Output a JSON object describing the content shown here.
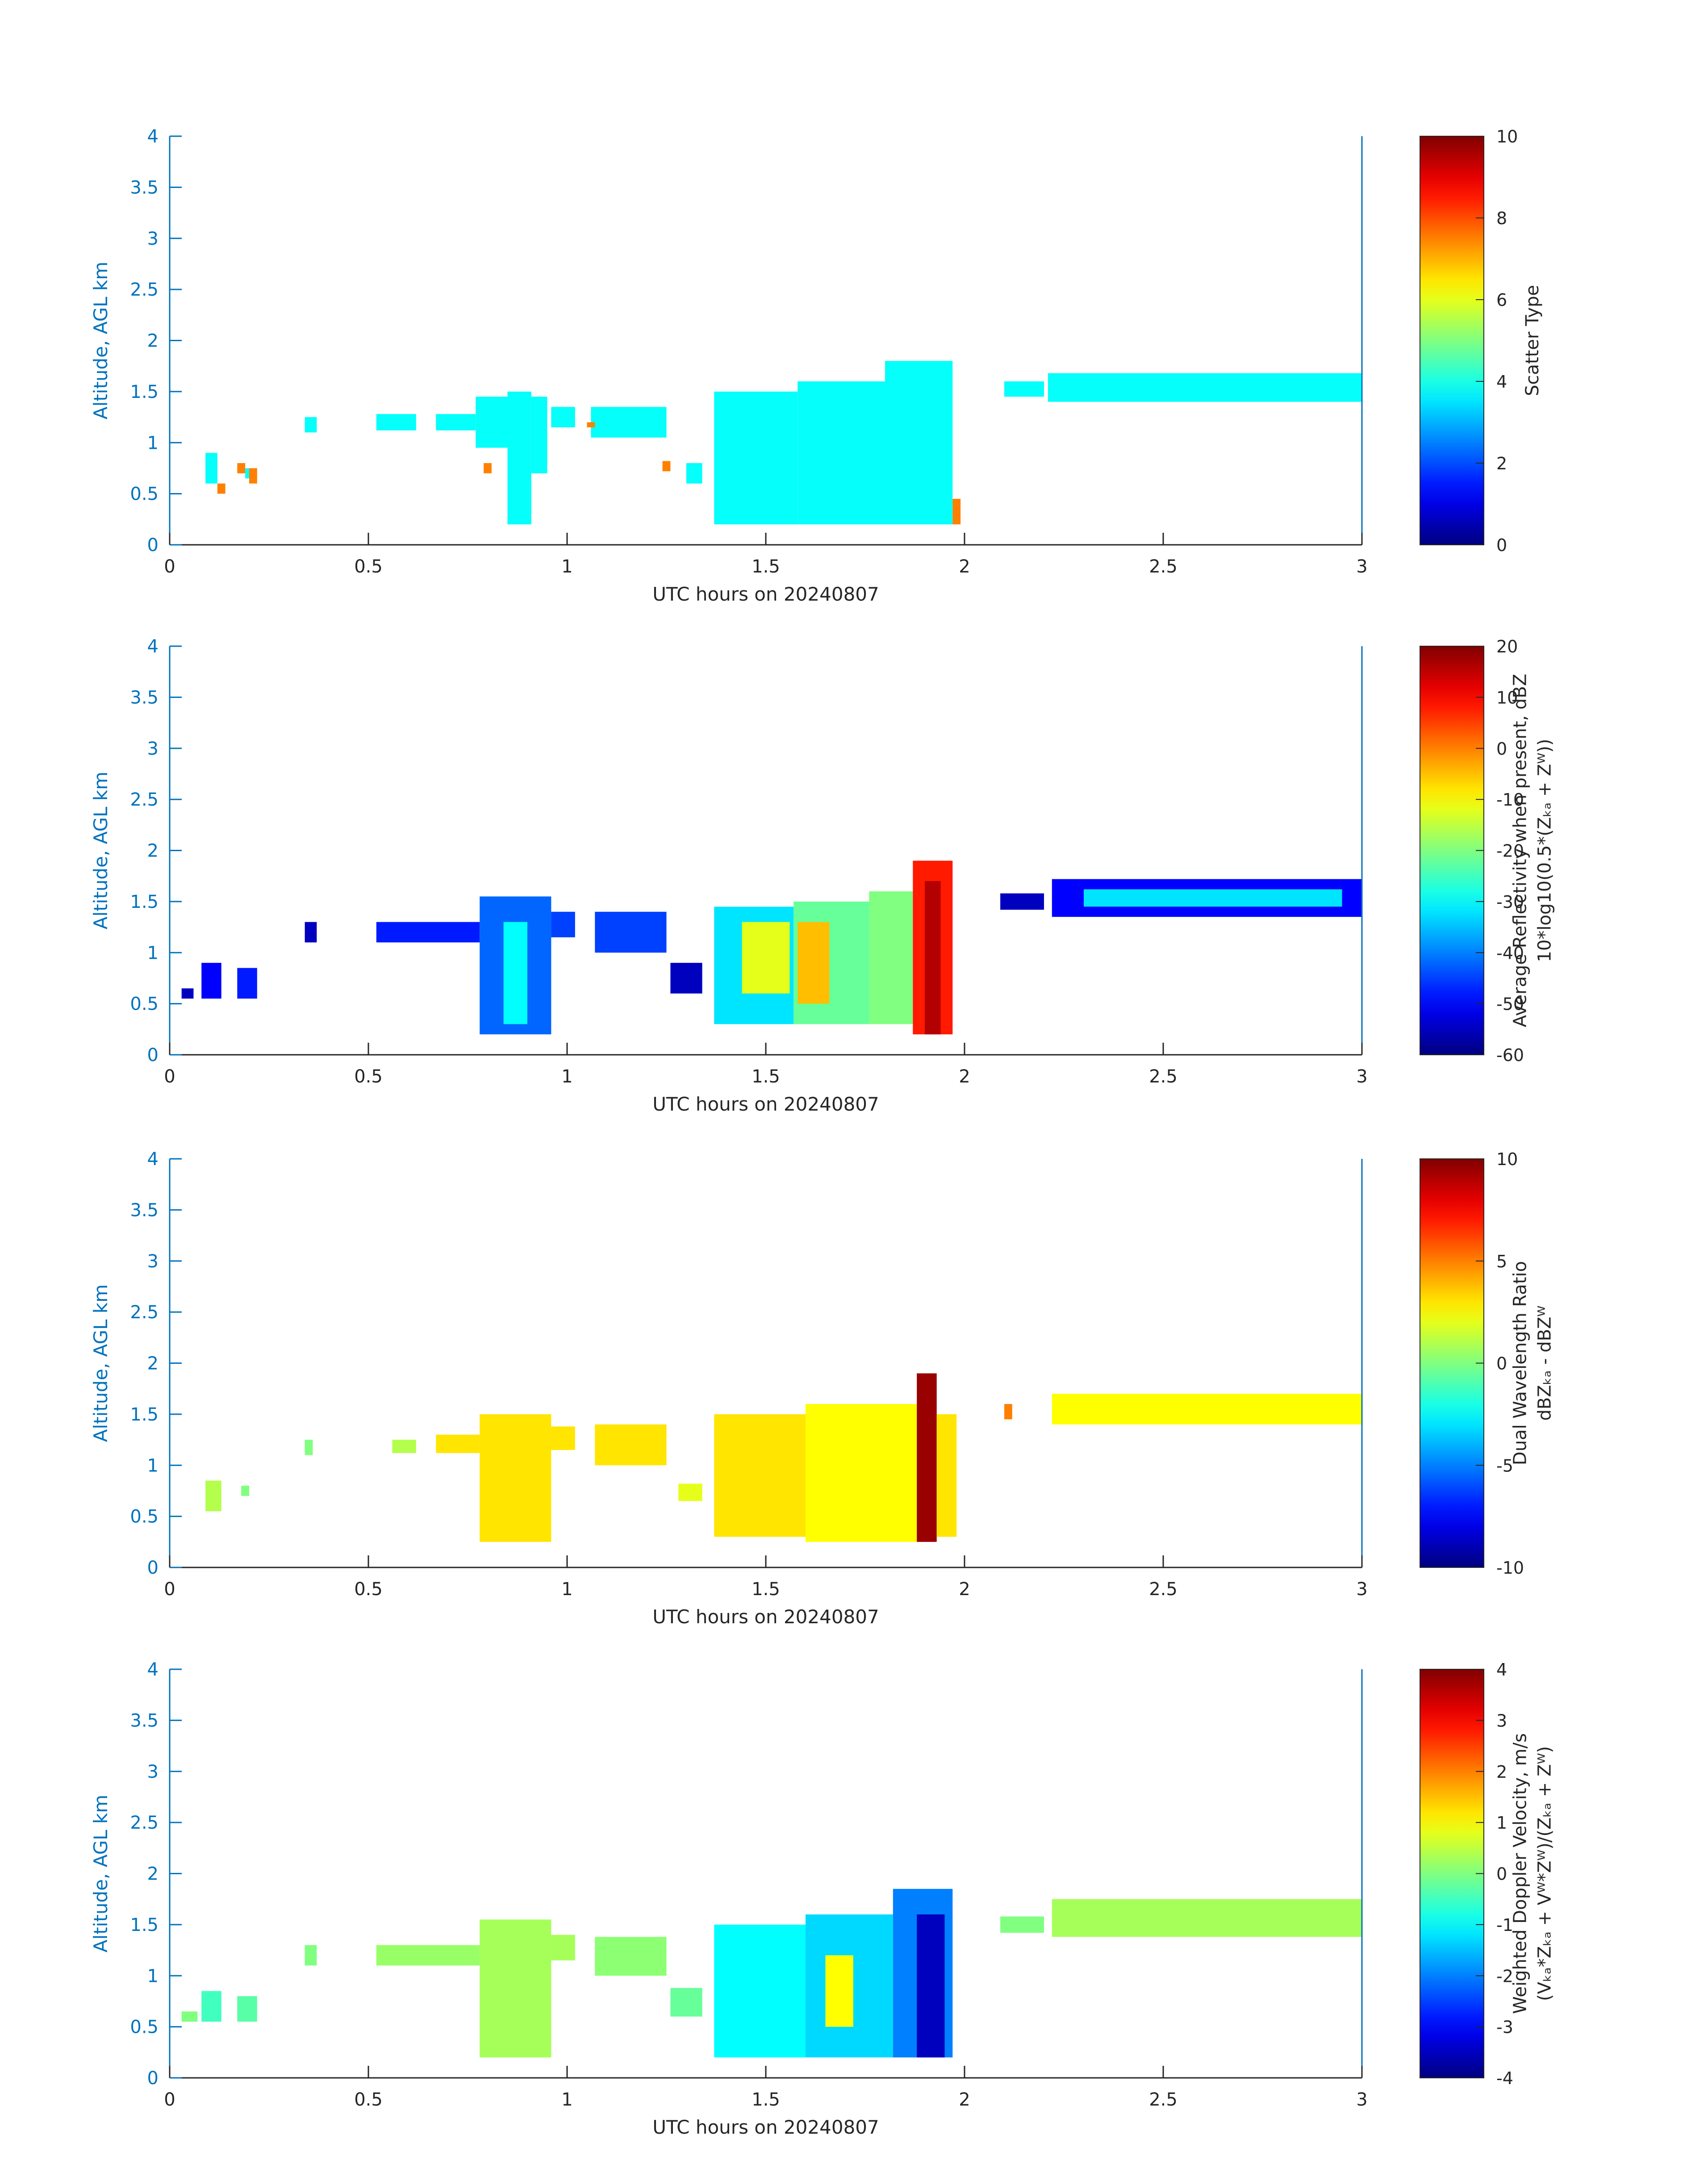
{
  "chart_data": [
    {
      "type": "heatmap",
      "xlabel": "UTC hours on 20240807",
      "ylabel": "Altitude, AGL km",
      "xlim": [
        0,
        3
      ],
      "ylim": [
        0,
        4
      ],
      "xticks": [
        "0",
        "0.5",
        "1",
        "1.5",
        "2",
        "2.5",
        "3"
      ],
      "yticks": [
        "0",
        "0.5",
        "1",
        "1.5",
        "2",
        "2.5",
        "3",
        "3.5",
        "4"
      ],
      "colorbar": {
        "label_lines": [
          "Scatter Type"
        ],
        "range": [
          0,
          10
        ],
        "ticks": [
          "0",
          "2",
          "4",
          "6",
          "8",
          "10"
        ]
      },
      "regions": [
        {
          "x0": 0.09,
          "x1": 0.12,
          "y0": 0.6,
          "y1": 0.9,
          "value": 3.8
        },
        {
          "x0": 0.12,
          "x1": 0.14,
          "y0": 0.5,
          "y1": 0.6,
          "value": 7.5
        },
        {
          "x0": 0.17,
          "x1": 0.19,
          "y0": 0.7,
          "y1": 0.8,
          "value": 7.5
        },
        {
          "x0": 0.19,
          "x1": 0.21,
          "y0": 0.65,
          "y1": 0.75,
          "value": 3.8
        },
        {
          "x0": 0.2,
          "x1": 0.22,
          "y0": 0.6,
          "y1": 0.75,
          "value": 7.5
        },
        {
          "x0": 0.34,
          "x1": 0.37,
          "y0": 1.1,
          "y1": 1.25,
          "value": 3.8
        },
        {
          "x0": 0.52,
          "x1": 0.62,
          "y0": 1.12,
          "y1": 1.28,
          "value": 3.8
        },
        {
          "x0": 0.67,
          "x1": 0.77,
          "y0": 1.12,
          "y1": 1.28,
          "value": 3.8
        },
        {
          "x0": 0.77,
          "x1": 0.85,
          "y0": 0.95,
          "y1": 1.45,
          "value": 3.8
        },
        {
          "x0": 0.85,
          "x1": 0.91,
          "y0": 0.2,
          "y1": 1.5,
          "value": 3.8
        },
        {
          "x0": 0.91,
          "x1": 0.95,
          "y0": 0.7,
          "y1": 1.45,
          "value": 3.8
        },
        {
          "x0": 0.79,
          "x1": 0.81,
          "y0": 0.7,
          "y1": 0.8,
          "value": 7.5
        },
        {
          "x0": 0.96,
          "x1": 1.02,
          "y0": 1.15,
          "y1": 1.35,
          "value": 3.8
        },
        {
          "x0": 1.06,
          "x1": 1.25,
          "y0": 1.05,
          "y1": 1.35,
          "value": 3.8
        },
        {
          "x0": 1.05,
          "x1": 1.07,
          "y0": 1.15,
          "y1": 1.2,
          "value": 7.5
        },
        {
          "x0": 1.24,
          "x1": 1.26,
          "y0": 0.72,
          "y1": 0.82,
          "value": 7.5
        },
        {
          "x0": 1.3,
          "x1": 1.34,
          "y0": 0.6,
          "y1": 0.8,
          "value": 3.8
        },
        {
          "x0": 1.37,
          "x1": 1.58,
          "y0": 0.2,
          "y1": 1.5,
          "value": 3.8
        },
        {
          "x0": 1.58,
          "x1": 1.8,
          "y0": 0.2,
          "y1": 1.6,
          "value": 3.8
        },
        {
          "x0": 1.8,
          "x1": 1.97,
          "y0": 0.2,
          "y1": 1.8,
          "value": 3.8
        },
        {
          "x0": 1.97,
          "x1": 1.99,
          "y0": 0.2,
          "y1": 0.45,
          "value": 7.5
        },
        {
          "x0": 2.1,
          "x1": 2.2,
          "y0": 1.45,
          "y1": 1.6,
          "value": 3.8
        },
        {
          "x0": 2.21,
          "x1": 3.0,
          "y0": 1.4,
          "y1": 1.68,
          "value": 3.8
        }
      ]
    },
    {
      "type": "heatmap",
      "xlabel": "UTC hours on 20240807",
      "ylabel": "Altitude, AGL km",
      "xlim": [
        0,
        3
      ],
      "ylim": [
        0,
        4
      ],
      "xticks": [
        "0",
        "0.5",
        "1",
        "1.5",
        "2",
        "2.5",
        "3"
      ],
      "yticks": [
        "0",
        "0.5",
        "1",
        "1.5",
        "2",
        "2.5",
        "3",
        "3.5",
        "4"
      ],
      "colorbar": {
        "label_lines": [
          "Average Reflectivity when present, dBZ",
          "10*log10(0.5*(Zₖₐ + Zᵂ))"
        ],
        "range": [
          -60,
          20
        ],
        "ticks": [
          "-60",
          "-50",
          "-40",
          "-30",
          "-20",
          "-10",
          "0",
          "10",
          "20"
        ]
      },
      "regions": [
        {
          "x0": 0.03,
          "x1": 0.06,
          "y0": 0.55,
          "y1": 0.65,
          "value": -55
        },
        {
          "x0": 0.08,
          "x1": 0.13,
          "y0": 0.55,
          "y1": 0.9,
          "value": -50
        },
        {
          "x0": 0.17,
          "x1": 0.22,
          "y0": 0.55,
          "y1": 0.85,
          "value": -48
        },
        {
          "x0": 0.34,
          "x1": 0.37,
          "y0": 1.1,
          "y1": 1.3,
          "value": -55
        },
        {
          "x0": 0.52,
          "x1": 0.78,
          "y0": 1.1,
          "y1": 1.3,
          "value": -48
        },
        {
          "x0": 0.78,
          "x1": 0.96,
          "y0": 0.2,
          "y1": 1.55,
          "value": -42
        },
        {
          "x0": 0.84,
          "x1": 0.9,
          "y0": 0.3,
          "y1": 1.3,
          "value": -30
        },
        {
          "x0": 0.96,
          "x1": 1.02,
          "y0": 1.15,
          "y1": 1.4,
          "value": -45
        },
        {
          "x0": 1.07,
          "x1": 1.25,
          "y0": 1.0,
          "y1": 1.4,
          "value": -45
        },
        {
          "x0": 1.26,
          "x1": 1.34,
          "y0": 0.6,
          "y1": 0.9,
          "value": -55
        },
        {
          "x0": 1.37,
          "x1": 1.57,
          "y0": 0.3,
          "y1": 1.45,
          "value": -32
        },
        {
          "x0": 1.44,
          "x1": 1.56,
          "y0": 0.6,
          "y1": 1.3,
          "value": -12
        },
        {
          "x0": 1.57,
          "x1": 1.76,
          "y0": 0.3,
          "y1": 1.5,
          "value": -22
        },
        {
          "x0": 1.58,
          "x1": 1.66,
          "y0": 0.5,
          "y1": 1.3,
          "value": -5
        },
        {
          "x0": 1.76,
          "x1": 1.87,
          "y0": 0.3,
          "y1": 1.6,
          "value": -20
        },
        {
          "x0": 1.87,
          "x1": 1.97,
          "y0": 0.2,
          "y1": 1.9,
          "value": 8
        },
        {
          "x0": 1.9,
          "x1": 1.94,
          "y0": 0.2,
          "y1": 1.7,
          "value": 16
        },
        {
          "x0": 2.09,
          "x1": 2.2,
          "y0": 1.42,
          "y1": 1.58,
          "value": -55
        },
        {
          "x0": 2.22,
          "x1": 3.0,
          "y0": 1.35,
          "y1": 1.72,
          "value": -50
        },
        {
          "x0": 2.3,
          "x1": 2.95,
          "y0": 1.45,
          "y1": 1.62,
          "value": -32
        }
      ]
    },
    {
      "type": "heatmap",
      "xlabel": "UTC hours on 20240807",
      "ylabel": "Altitude, AGL km",
      "xlim": [
        0,
        3
      ],
      "ylim": [
        0,
        4
      ],
      "xticks": [
        "0",
        "0.5",
        "1",
        "1.5",
        "2",
        "2.5",
        "3"
      ],
      "yticks": [
        "0",
        "0.5",
        "1",
        "1.5",
        "2",
        "2.5",
        "3",
        "3.5",
        "4"
      ],
      "colorbar": {
        "label_lines": [
          "Dual Wavelength Ratio",
          "dBZₖₐ - dBZᵂ"
        ],
        "range": [
          -10,
          10
        ],
        "ticks": [
          "-10",
          "-5",
          "0",
          "5",
          "10"
        ]
      },
      "regions": [
        {
          "x0": 0.09,
          "x1": 0.13,
          "y0": 0.55,
          "y1": 0.85,
          "value": 1
        },
        {
          "x0": 0.18,
          "x1": 0.2,
          "y0": 0.7,
          "y1": 0.8,
          "value": 0
        },
        {
          "x0": 0.34,
          "x1": 0.36,
          "y0": 1.1,
          "y1": 1.25,
          "value": 0
        },
        {
          "x0": 0.56,
          "x1": 0.62,
          "y0": 1.12,
          "y1": 1.25,
          "value": 1
        },
        {
          "x0": 0.67,
          "x1": 0.78,
          "y0": 1.12,
          "y1": 1.3,
          "value": 3
        },
        {
          "x0": 0.78,
          "x1": 0.96,
          "y0": 0.25,
          "y1": 1.5,
          "value": 3
        },
        {
          "x0": 0.96,
          "x1": 1.02,
          "y0": 1.15,
          "y1": 1.38,
          "value": 3
        },
        {
          "x0": 1.07,
          "x1": 1.25,
          "y0": 1.0,
          "y1": 1.4,
          "value": 3
        },
        {
          "x0": 1.28,
          "x1": 1.34,
          "y0": 0.65,
          "y1": 0.82,
          "value": 2
        },
        {
          "x0": 1.37,
          "x1": 1.6,
          "y0": 0.3,
          "y1": 1.5,
          "value": 3
        },
        {
          "x0": 1.6,
          "x1": 1.88,
          "y0": 0.25,
          "y1": 1.6,
          "value": 2.5
        },
        {
          "x0": 1.88,
          "x1": 1.93,
          "y0": 0.25,
          "y1": 1.9,
          "value": 9.5
        },
        {
          "x0": 1.93,
          "x1": 1.98,
          "y0": 0.3,
          "y1": 1.5,
          "value": 3
        },
        {
          "x0": 2.1,
          "x1": 2.12,
          "y0": 1.45,
          "y1": 1.6,
          "value": 5
        },
        {
          "x0": 2.22,
          "x1": 3.0,
          "y0": 1.4,
          "y1": 1.7,
          "value": 2.5
        }
      ]
    },
    {
      "type": "heatmap",
      "xlabel": "UTC hours on 20240807",
      "ylabel": "Altitude, AGL km",
      "xlim": [
        0,
        3
      ],
      "ylim": [
        0,
        4
      ],
      "xticks": [
        "0",
        "0.5",
        "1",
        "1.5",
        "2",
        "2.5",
        "3"
      ],
      "yticks": [
        "0",
        "0.5",
        "1",
        "1.5",
        "2",
        "2.5",
        "3",
        "3.5",
        "4"
      ],
      "colorbar": {
        "label_lines": [
          "Weighted Doppler Velocity, m/s",
          "(Vₖₐ*Zₖₐ + Vᵂ*Zᵂ)/(Zₖₐ + Zᵂ)"
        ],
        "range": [
          -4,
          4
        ],
        "ticks": [
          "-4",
          "-3",
          "-2",
          "-1",
          "0",
          "1",
          "2",
          "3",
          "4"
        ]
      },
      "regions": [
        {
          "x0": 0.03,
          "x1": 0.07,
          "y0": 0.55,
          "y1": 0.65,
          "value": 0
        },
        {
          "x0": 0.08,
          "x1": 0.13,
          "y0": 0.55,
          "y1": 0.85,
          "value": -0.5
        },
        {
          "x0": 0.17,
          "x1": 0.22,
          "y0": 0.55,
          "y1": 0.8,
          "value": -0.3
        },
        {
          "x0": 0.34,
          "x1": 0.37,
          "y0": 1.1,
          "y1": 1.3,
          "value": 0
        },
        {
          "x0": 0.52,
          "x1": 0.78,
          "y0": 1.1,
          "y1": 1.3,
          "value": 0.2
        },
        {
          "x0": 0.78,
          "x1": 0.96,
          "y0": 0.2,
          "y1": 1.55,
          "value": 0.3
        },
        {
          "x0": 0.96,
          "x1": 1.02,
          "y0": 1.15,
          "y1": 1.4,
          "value": 0.3
        },
        {
          "x0": 1.07,
          "x1": 1.25,
          "y0": 1.0,
          "y1": 1.38,
          "value": 0.1
        },
        {
          "x0": 1.26,
          "x1": 1.34,
          "y0": 0.6,
          "y1": 0.88,
          "value": -0.2
        },
        {
          "x0": 1.37,
          "x1": 1.6,
          "y0": 0.2,
          "y1": 1.5,
          "value": -1
        },
        {
          "x0": 1.6,
          "x1": 1.82,
          "y0": 0.2,
          "y1": 1.6,
          "value": -1.3
        },
        {
          "x0": 1.65,
          "x1": 1.72,
          "y0": 0.5,
          "y1": 1.2,
          "value": 1
        },
        {
          "x0": 1.82,
          "x1": 1.97,
          "y0": 0.2,
          "y1": 1.85,
          "value": -2
        },
        {
          "x0": 1.88,
          "x1": 1.95,
          "y0": 0.2,
          "y1": 1.6,
          "value": -3.5
        },
        {
          "x0": 2.09,
          "x1": 2.2,
          "y0": 1.42,
          "y1": 1.58,
          "value": 0
        },
        {
          "x0": 2.22,
          "x1": 3.0,
          "y0": 1.38,
          "y1": 1.75,
          "value": 0.3
        }
      ]
    }
  ]
}
